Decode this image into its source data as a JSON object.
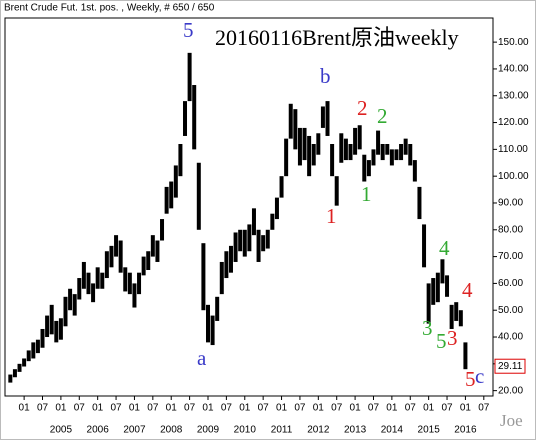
{
  "chart_data": {
    "type": "range",
    "header": "Brent Crude Fut. 1st. pos. , Weekly, # 650 / 650",
    "title": "20160116Brent原油weekly",
    "watermark": "Joe",
    "color": "#000000",
    "xlim": [
      2003.48,
      2016.75
    ],
    "ylim": [
      18,
      159
    ],
    "yticks": [
      {
        "value": 20,
        "label": "20.00"
      },
      {
        "value": 30,
        "label": "30.00"
      },
      {
        "value": 40,
        "label": "40.00"
      },
      {
        "value": 50,
        "label": "50.00"
      },
      {
        "value": 60,
        "label": "60.00"
      },
      {
        "value": 70,
        "label": "70.00"
      },
      {
        "value": 80,
        "label": "80.00"
      },
      {
        "value": 90,
        "label": "90.00"
      },
      {
        "value": 100,
        "label": "100.00"
      },
      {
        "value": 110,
        "label": "110.00"
      },
      {
        "value": 120,
        "label": "120.00"
      },
      {
        "value": 130,
        "label": "130.00"
      },
      {
        "value": 140,
        "label": "140.00"
      },
      {
        "value": 150,
        "label": "150.00"
      }
    ],
    "xticks": [
      {
        "value": 2004,
        "label": "01"
      },
      {
        "value": 2004.5,
        "label": "07"
      },
      {
        "value": 2005,
        "label": "01"
      },
      {
        "value": 2005.5,
        "label": "07"
      },
      {
        "value": 2006,
        "label": "01"
      },
      {
        "value": 2006.5,
        "label": "07"
      },
      {
        "value": 2007,
        "label": "01"
      },
      {
        "value": 2007.5,
        "label": "07"
      },
      {
        "value": 2008,
        "label": "01"
      },
      {
        "value": 2008.5,
        "label": "07"
      },
      {
        "value": 2009,
        "label": "01"
      },
      {
        "value": 2009.5,
        "label": "07"
      },
      {
        "value": 2010,
        "label": "01"
      },
      {
        "value": 2010.5,
        "label": "07"
      },
      {
        "value": 2011,
        "label": "01"
      },
      {
        "value": 2011.5,
        "label": "07"
      },
      {
        "value": 2012,
        "label": "01"
      },
      {
        "value": 2012.5,
        "label": "07"
      },
      {
        "value": 2013,
        "label": "01"
      },
      {
        "value": 2013.5,
        "label": "07"
      },
      {
        "value": 2014,
        "label": "01"
      },
      {
        "value": 2014.5,
        "label": "07"
      },
      {
        "value": 2015,
        "label": "01"
      },
      {
        "value": 2015.5,
        "label": "07"
      },
      {
        "value": 2016,
        "label": "01"
      },
      {
        "value": 2016.5,
        "label": "07"
      }
    ],
    "year_labels": [
      2005,
      2006,
      2007,
      2008,
      2009,
      2010,
      2011,
      2012,
      2013,
      2014,
      2015,
      2016
    ],
    "last_price": 29.11,
    "last_price_color": "#dd0000",
    "x": [
      2003.625,
      2003.75,
      2003.875,
      2004,
      2004.125,
      2004.25,
      2004.375,
      2004.5,
      2004.625,
      2004.75,
      2004.875,
      2005,
      2005.125,
      2005.25,
      2005.375,
      2005.5,
      2005.625,
      2005.75,
      2005.875,
      2006,
      2006.125,
      2006.25,
      2006.375,
      2006.5,
      2006.625,
      2006.75,
      2006.875,
      2007,
      2007.125,
      2007.25,
      2007.375,
      2007.5,
      2007.625,
      2007.75,
      2007.875,
      2008,
      2008.125,
      2008.25,
      2008.375,
      2008.5,
      2008.625,
      2008.75,
      2008.875,
      2009,
      2009.125,
      2009.25,
      2009.375,
      2009.5,
      2009.625,
      2009.75,
      2009.875,
      2010,
      2010.125,
      2010.25,
      2010.375,
      2010.5,
      2010.625,
      2010.75,
      2010.875,
      2011,
      2011.125,
      2011.25,
      2011.375,
      2011.5,
      2011.625,
      2011.75,
      2011.875,
      2012,
      2012.125,
      2012.25,
      2012.375,
      2012.5,
      2012.625,
      2012.75,
      2012.875,
      2013,
      2013.125,
      2013.25,
      2013.375,
      2013.5,
      2013.625,
      2013.75,
      2013.875,
      2014,
      2014.125,
      2014.25,
      2014.375,
      2014.5,
      2014.625,
      2014.75,
      2014.875,
      2015,
      2015.125,
      2015.25,
      2015.375,
      2015.5,
      2015.625,
      2015.75,
      2015.875,
      2016
    ],
    "low": [
      23,
      25,
      27,
      29,
      31,
      32,
      34,
      36,
      40,
      41,
      38,
      39,
      44,
      50,
      48,
      54,
      58,
      56,
      53,
      58,
      58,
      62,
      66,
      70,
      64,
      57,
      56,
      51,
      56,
      63,
      65,
      70,
      68,
      76,
      86,
      88,
      92,
      100,
      115,
      128,
      110,
      80,
      50,
      38,
      37,
      46,
      56,
      62,
      64,
      68,
      72,
      70,
      72,
      78,
      68,
      72,
      73,
      80,
      84,
      92,
      100,
      114,
      110,
      104,
      106,
      100,
      104,
      108,
      118,
      115,
      100,
      89,
      105,
      106,
      106,
      108,
      110,
      98,
      100,
      104,
      108,
      106,
      108,
      104,
      106,
      106,
      108,
      104,
      98,
      84,
      66,
      45,
      52,
      53,
      60,
      55,
      43,
      46,
      44,
      28
    ],
    "high": [
      26,
      28,
      30,
      32,
      35,
      38,
      39,
      43,
      48,
      52,
      46,
      47,
      55,
      58,
      56,
      62,
      68,
      64,
      60,
      66,
      64,
      72,
      74,
      78,
      76,
      66,
      64,
      60,
      64,
      70,
      72,
      78,
      76,
      84,
      96,
      98,
      104,
      112,
      128,
      146,
      134,
      105,
      75,
      52,
      48,
      55,
      68,
      72,
      74,
      79,
      80,
      80,
      82,
      88,
      80,
      78,
      80,
      86,
      92,
      100,
      114,
      127,
      125,
      118,
      118,
      115,
      112,
      116,
      126,
      128,
      112,
      100,
      116,
      114,
      112,
      118,
      119,
      108,
      106,
      110,
      117,
      112,
      112,
      110,
      110,
      112,
      114,
      112,
      106,
      96,
      82,
      60,
      62,
      64,
      69,
      63,
      52,
      53,
      50,
      38
    ],
    "annotations": [
      {
        "text": "5",
        "color": "#3a3ac8"
      },
      {
        "text": "a",
        "color": "#3a3ac8"
      },
      {
        "text": "b",
        "color": "#3a3ac8"
      },
      {
        "text": "1",
        "color": "#dd2222"
      },
      {
        "text": "2",
        "color": "#dd2222"
      },
      {
        "text": "2",
        "color": "#33aa33"
      },
      {
        "text": "1",
        "color": "#33aa33"
      },
      {
        "text": "3",
        "color": "#33aa33"
      },
      {
        "text": "4",
        "color": "#33aa33"
      },
      {
        "text": "5",
        "color": "#33aa33"
      },
      {
        "text": "3",
        "color": "#dd2222"
      },
      {
        "text": "4",
        "color": "#dd2222"
      },
      {
        "text": "5",
        "color": "#dd2222"
      },
      {
        "text": "c",
        "color": "#3a3ac8"
      }
    ]
  }
}
